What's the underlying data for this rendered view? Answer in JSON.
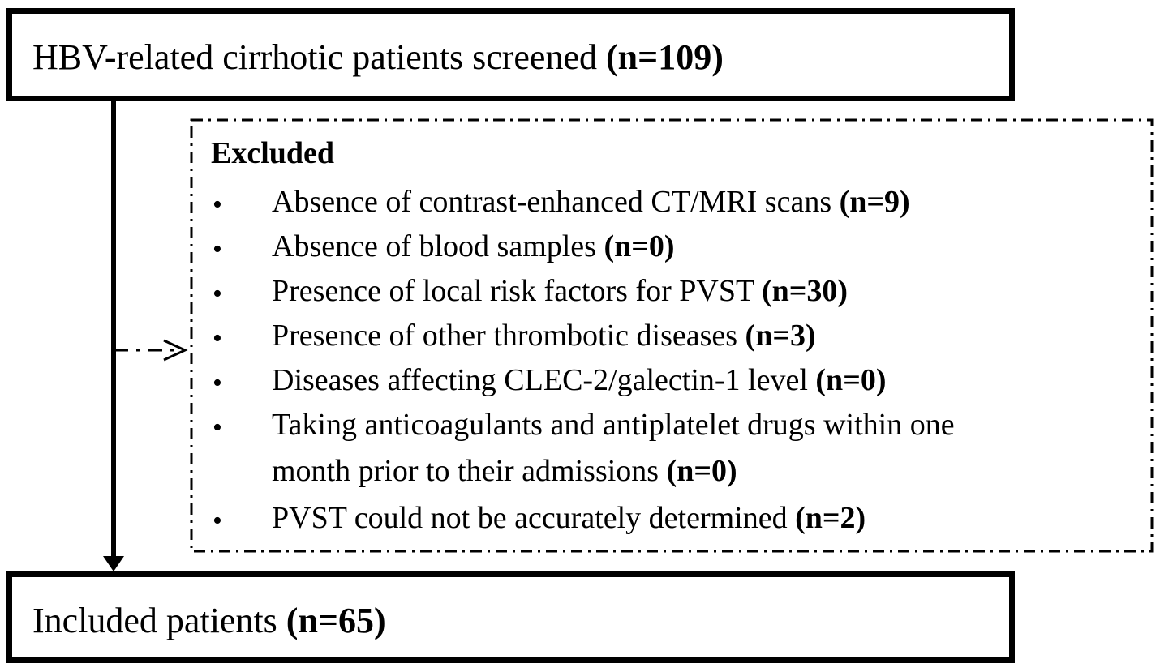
{
  "top_box": {
    "text": "HBV-related cirrhotic patients screened ",
    "count": "(n=109)"
  },
  "excluded": {
    "title": "Excluded",
    "bullet": "•",
    "items": [
      {
        "text": "Absence of contrast-enhanced CT/MRI scans ",
        "count": "(n=9)"
      },
      {
        "text": "Absence of blood samples ",
        "count": "(n=0)"
      },
      {
        "text": "Presence of local risk factors for PVST ",
        "count": "(n=30)"
      },
      {
        "text": "Presence of other thrombotic diseases ",
        "count": "(n=3)"
      },
      {
        "text": "Diseases affecting CLEC-2/galectin-1 level ",
        "count": "(n=0)"
      },
      {
        "text": "Taking anticoagulants and antiplatelet drugs within one",
        "text2": "month prior to their admissions ",
        "count": "(n=0)"
      },
      {
        "text": "PVST could not be accurately determined ",
        "count": "(n=2)"
      }
    ]
  },
  "bottom_box": {
    "text": "Included patients ",
    "count": "(n=65)"
  }
}
